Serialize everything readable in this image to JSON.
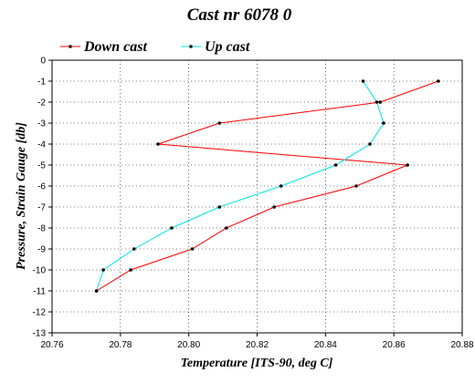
{
  "chart_data": {
    "type": "line",
    "title": "Cast nr 6078 0",
    "xlabel": "Temperature [ITS-90, deg C]",
    "ylabel": "Pressure, Strain Gauge [db]",
    "xlim": [
      20.76,
      20.88
    ],
    "ylim": [
      -13,
      0
    ],
    "xticks": [
      "20.76",
      "20.78",
      "20.80",
      "20.82",
      "20.84",
      "20.86",
      "20.88"
    ],
    "yticks": [
      "0",
      "-1",
      "-2",
      "-3",
      "-4",
      "-5",
      "-6",
      "-7",
      "-8",
      "-9",
      "-10",
      "-11",
      "-12",
      "-13"
    ],
    "grid": true,
    "legend_position": "top-left",
    "series": [
      {
        "name": "Down cast",
        "color": "#ff0000",
        "x": [
          20.873,
          20.856,
          20.809,
          20.791,
          20.864,
          20.849,
          20.825,
          20.811,
          20.801,
          20.783,
          20.773
        ],
        "y": [
          -1,
          -2,
          -3,
          -4,
          -5,
          -6,
          -7,
          -8,
          -9,
          -10,
          -11
        ]
      },
      {
        "name": "Up cast",
        "color": "#00e5e5",
        "x": [
          20.851,
          20.855,
          20.857,
          20.853,
          20.843,
          20.827,
          20.809,
          20.795,
          20.784,
          20.775,
          20.773
        ],
        "y": [
          -1,
          -2,
          -3,
          -4,
          -5,
          -6,
          -7,
          -8,
          -9,
          -10,
          -11
        ]
      }
    ]
  }
}
